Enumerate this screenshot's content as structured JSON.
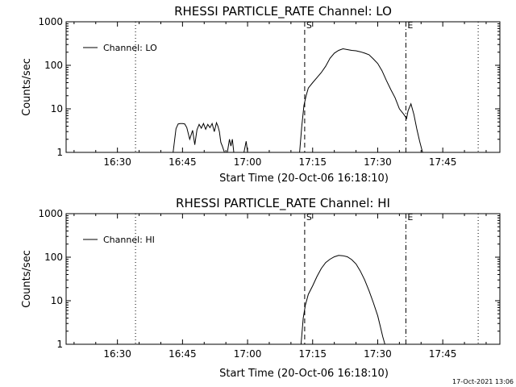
{
  "footer_timestamp": "17-Oct-2021 13:06",
  "chart_data": [
    {
      "type": "line",
      "title": "RHESSI PARTICLE_RATE Channel: LO",
      "xlabel": "Start Time (20-Oct-06 16:18:10)",
      "ylabel": "Counts/sec",
      "y_scale": "log",
      "ylim": [
        1,
        1000
      ],
      "xlim": [
        "16:18:10",
        "17:58:10"
      ],
      "x_ticks": [
        "16:30",
        "16:45",
        "17:00",
        "17:15",
        "17:30",
        "17:45"
      ],
      "y_ticks": [
        "1",
        "10",
        "100",
        "1000"
      ],
      "legend": {
        "label": "Channel: LO",
        "position": "top-left"
      },
      "markers": [
        {
          "label": "S",
          "x": "17:13:10",
          "style": "dashed"
        },
        {
          "label": "E",
          "x": "17:36:30",
          "style": "dashdot"
        }
      ],
      "dotted_lines": [
        "16:34:10",
        "17:53:10"
      ],
      "series": [
        {
          "segments": [
            {
              "x": [
                "16:42:50",
                "16:43:30",
                "16:44:00",
                "16:44:30",
                "16:45:00",
                "16:45:30",
                "16:46:00",
                "16:46:40",
                "16:47:20",
                "16:47:50",
                "16:48:20",
                "16:48:50",
                "16:49:20",
                "16:49:50",
                "16:50:20",
                "16:50:50",
                "16:51:20",
                "16:51:50",
                "16:52:20",
                "16:52:50",
                "16:53:10",
                "16:53:30",
                "16:53:50",
                "16:54:10",
                "16:54:40"
              ],
              "y": [
                1,
                3.5,
                4.5,
                4.6,
                4.6,
                4.5,
                3.7,
                2.0,
                3.2,
                1.5,
                3.3,
                4.4,
                3.6,
                4.6,
                3.4,
                4.4,
                3.7,
                4.6,
                3.0,
                4.8,
                4.0,
                3.0,
                1.7,
                1.4,
                1
              ]
            },
            {
              "x": [
                "16:55:20",
                "16:55:50",
                "16:56:10",
                "16:56:30",
                "16:56:50"
              ],
              "y": [
                1,
                2.0,
                1.4,
                2.0,
                1
              ]
            },
            {
              "x": [
                "16:59:10",
                "16:59:40",
                "17:00:00"
              ],
              "y": [
                1,
                1.8,
                1
              ]
            },
            {
              "x": [
                "17:12:00",
                "17:12:30",
                "17:13:00",
                "17:13:30",
                "17:14:00",
                "17:15:00",
                "17:16:00",
                "17:17:00",
                "17:18:00",
                "17:19:00",
                "17:20:00",
                "17:21:00",
                "17:22:00",
                "17:23:00",
                "17:24:00",
                "17:25:00",
                "17:26:00",
                "17:27:00",
                "17:28:00",
                "17:29:00",
                "17:30:00",
                "17:31:00",
                "17:32:00",
                "17:33:00",
                "17:34:00",
                "17:35:00",
                "17:36:00",
                "17:36:40",
                "17:37:00",
                "17:37:40",
                "17:38:20",
                "17:39:00",
                "17:39:40",
                "17:40:20"
              ],
              "y": [
                1,
                4,
                12,
                20,
                30,
                40,
                52,
                68,
                95,
                145,
                190,
                220,
                240,
                230,
                220,
                215,
                205,
                190,
                175,
                140,
                110,
                75,
                45,
                28,
                18,
                10,
                7.5,
                6.0,
                9,
                13,
                7.5,
                3.5,
                1.8,
                1
              ]
            }
          ]
        }
      ]
    },
    {
      "type": "line",
      "title": "RHESSI PARTICLE_RATE Channel: HI",
      "xlabel": "Start Time (20-Oct-06 16:18:10)",
      "ylabel": "Counts/sec",
      "y_scale": "log",
      "ylim": [
        1,
        1000
      ],
      "xlim": [
        "16:18:10",
        "17:58:10"
      ],
      "x_ticks": [
        "16:30",
        "16:45",
        "17:00",
        "17:15",
        "17:30",
        "17:45"
      ],
      "y_ticks": [
        "1",
        "10",
        "100",
        "1000"
      ],
      "legend": {
        "label": "Channel: HI",
        "position": "top-left"
      },
      "markers": [
        {
          "label": "S",
          "x": "17:13:10",
          "style": "dashed"
        },
        {
          "label": "E",
          "x": "17:36:30",
          "style": "dashdot"
        }
      ],
      "dotted_lines": [
        "16:34:10",
        "17:53:10"
      ],
      "series": [
        {
          "segments": [
            {
              "x": [
                "17:12:20",
                "17:12:50",
                "17:13:20",
                "17:14:00",
                "17:15:00",
                "17:16:00",
                "17:17:00",
                "17:18:00",
                "17:19:00",
                "17:20:00",
                "17:21:00",
                "17:22:00",
                "17:23:00",
                "17:24:00",
                "17:25:00",
                "17:26:00",
                "17:27:00",
                "17:28:00",
                "17:29:00",
                "17:30:00",
                "17:30:40",
                "17:31:10",
                "17:31:40"
              ],
              "y": [
                1,
                4,
                8,
                14,
                22,
                36,
                55,
                75,
                90,
                102,
                110,
                108,
                102,
                88,
                70,
                48,
                30,
                17,
                9,
                4.5,
                2.4,
                1.5,
                1
              ]
            }
          ]
        }
      ]
    }
  ]
}
